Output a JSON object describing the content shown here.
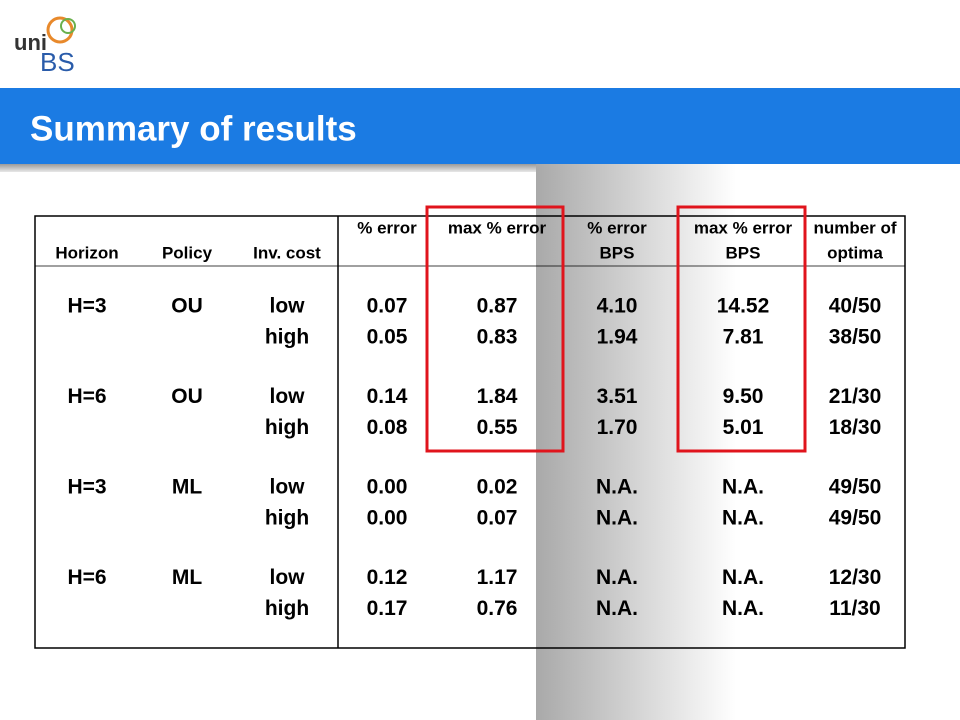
{
  "logo": {
    "top": "uni",
    "bottom": "BS"
  },
  "header": {
    "title": "Summary of results"
  },
  "table": {
    "columns": [
      {
        "lines": [
          "Horizon"
        ]
      },
      {
        "lines": [
          "Policy"
        ]
      },
      {
        "lines": [
          "Inv. cost"
        ]
      },
      {
        "lines": [
          "% error"
        ]
      },
      {
        "lines": [
          "max % error"
        ]
      },
      {
        "lines": [
          "% error",
          "BPS"
        ]
      },
      {
        "lines": [
          "max % error",
          "BPS"
        ]
      },
      {
        "lines": [
          "number of",
          "optima"
        ]
      }
    ],
    "groups": [
      {
        "horizon": "H=3",
        "policy": "OU",
        "rows": [
          [
            "low",
            "0.07",
            "0.87",
            "4.10",
            "14.52",
            "40/50"
          ],
          [
            "high",
            "0.05",
            "0.83",
            "1.94",
            "7.81",
            "38/50"
          ]
        ]
      },
      {
        "horizon": "H=6",
        "policy": "OU",
        "rows": [
          [
            "low",
            "0.14",
            "1.84",
            "3.51",
            "9.50",
            "21/30"
          ],
          [
            "high",
            "0.08",
            "0.55",
            "1.70",
            "5.01",
            "18/30"
          ]
        ]
      },
      {
        "horizon": "H=3",
        "policy": "ML",
        "rows": [
          [
            "low",
            "0.00",
            "0.02",
            "N.A.",
            "N.A.",
            "49/50"
          ],
          [
            "high",
            "0.00",
            "0.07",
            "N.A.",
            "N.A.",
            "49/50"
          ]
        ]
      },
      {
        "horizon": "H=6",
        "policy": "ML",
        "rows": [
          [
            "low",
            "0.12",
            "1.17",
            "N.A.",
            "N.A.",
            "12/30"
          ],
          [
            "high",
            "0.17",
            "0.76",
            "N.A.",
            "N.A.",
            "11/30"
          ]
        ]
      }
    ]
  }
}
